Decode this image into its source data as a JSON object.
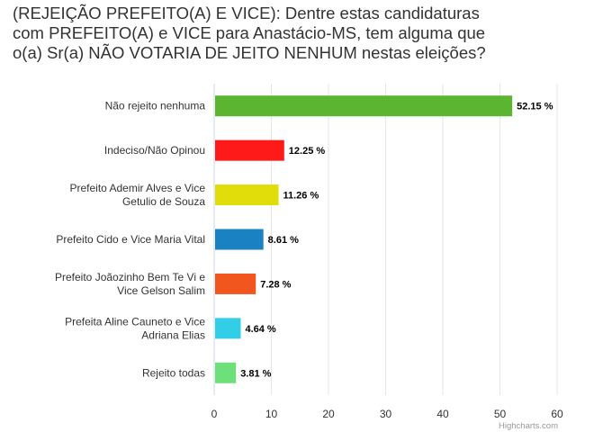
{
  "chart_data": {
    "type": "bar",
    "orientation": "horizontal",
    "title_lines": [
      "(REJEIÇÃO PREFEITO(A) E VICE): Dentre estas candidaturas",
      "com PREFEITO(A) e VICE para Anastácio-MS, tem alguma que",
      "o(a) Sr(a) NÃO VOTARIA DE JEITO NENHUM nestas eleições?"
    ],
    "categories": [
      [
        "Não rejeito nenhuma"
      ],
      [
        "Indeciso/Não Opinou"
      ],
      [
        "Prefeito Ademir Alves e Vice",
        "Getulio de Souza"
      ],
      [
        "Prefeito Cido e Vice Maria Vital"
      ],
      [
        "Prefeito Joãozinho Bem Te Vi e",
        "Vice Gelson Salim"
      ],
      [
        "Prefeita Aline Cauneto e Vice",
        "Adriana Elias"
      ],
      [
        "Rejeito todas"
      ]
    ],
    "values": [
      52.15,
      12.25,
      11.26,
      8.61,
      7.28,
      4.64,
      3.81
    ],
    "value_labels": [
      "52.15 %",
      "12.25 %",
      "11.26 %",
      "8.61 %",
      "7.28 %",
      "4.64 %",
      "3.81 %"
    ],
    "colors": [
      "#5cb531",
      "#ff1a1a",
      "#e0dd0a",
      "#1a82c2",
      "#f0561e",
      "#32cde6",
      "#6ee07a"
    ],
    "xlim": [
      0,
      60
    ],
    "xticks": [
      0,
      10,
      20,
      30,
      40,
      50,
      60
    ],
    "grid": true,
    "credits": "Highcharts.com"
  }
}
